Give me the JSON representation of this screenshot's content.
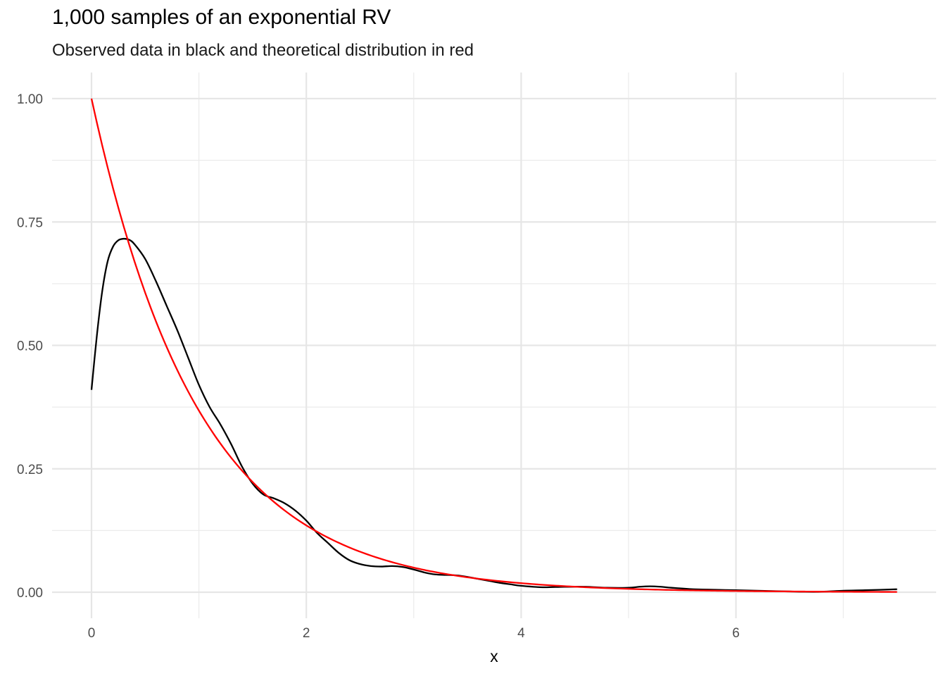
{
  "chart_data": {
    "type": "line",
    "title": "1,000 samples of an exponential RV",
    "subtitle": "Observed data in black and theoretical distribution in red",
    "xlabel": "x",
    "ylabel": "",
    "xlim": [
      0,
      7.5
    ],
    "ylim": [
      0,
      1.0
    ],
    "x_ticks": [
      0,
      2,
      4,
      6
    ],
    "x_tick_labels": [
      "0",
      "2",
      "4",
      "6"
    ],
    "y_ticks": [
      0,
      0.25,
      0.5,
      0.75,
      1.0
    ],
    "y_tick_labels": [
      "0.00",
      "0.25",
      "0.50",
      "0.75",
      "1.00"
    ],
    "grid": true,
    "legend": "none",
    "series": [
      {
        "color": "#000000",
        "points": [
          [
            0.0,
            0.41
          ],
          [
            0.05,
            0.52
          ],
          [
            0.1,
            0.61
          ],
          [
            0.15,
            0.67
          ],
          [
            0.2,
            0.7
          ],
          [
            0.25,
            0.713
          ],
          [
            0.3,
            0.716
          ],
          [
            0.35,
            0.714
          ],
          [
            0.4,
            0.705
          ],
          [
            0.5,
            0.675
          ],
          [
            0.6,
            0.63
          ],
          [
            0.7,
            0.58
          ],
          [
            0.8,
            0.53
          ],
          [
            0.9,
            0.475
          ],
          [
            1.0,
            0.42
          ],
          [
            1.1,
            0.375
          ],
          [
            1.2,
            0.34
          ],
          [
            1.3,
            0.3
          ],
          [
            1.4,
            0.255
          ],
          [
            1.5,
            0.22
          ],
          [
            1.6,
            0.198
          ],
          [
            1.7,
            0.19
          ],
          [
            1.8,
            0.18
          ],
          [
            1.9,
            0.165
          ],
          [
            2.0,
            0.145
          ],
          [
            2.1,
            0.12
          ],
          [
            2.2,
            0.1
          ],
          [
            2.3,
            0.08
          ],
          [
            2.4,
            0.065
          ],
          [
            2.5,
            0.057
          ],
          [
            2.6,
            0.053
          ],
          [
            2.7,
            0.052
          ],
          [
            2.8,
            0.053
          ],
          [
            2.9,
            0.051
          ],
          [
            3.0,
            0.046
          ],
          [
            3.1,
            0.04
          ],
          [
            3.2,
            0.036
          ],
          [
            3.3,
            0.035
          ],
          [
            3.4,
            0.034
          ],
          [
            3.5,
            0.031
          ],
          [
            3.6,
            0.027
          ],
          [
            3.7,
            0.023
          ],
          [
            3.8,
            0.019
          ],
          [
            3.9,
            0.016
          ],
          [
            4.0,
            0.013
          ],
          [
            4.2,
            0.01
          ],
          [
            4.4,
            0.011
          ],
          [
            4.6,
            0.011
          ],
          [
            4.8,
            0.009
          ],
          [
            5.0,
            0.009
          ],
          [
            5.1,
            0.011
          ],
          [
            5.2,
            0.012
          ],
          [
            5.3,
            0.011
          ],
          [
            5.4,
            0.009
          ],
          [
            5.6,
            0.006
          ],
          [
            5.8,
            0.005
          ],
          [
            6.0,
            0.004
          ],
          [
            6.2,
            0.003
          ],
          [
            6.4,
            0.002
          ],
          [
            6.6,
            0.001
          ],
          [
            6.8,
            0.001
          ],
          [
            7.0,
            0.003
          ],
          [
            7.2,
            0.004
          ],
          [
            7.5,
            0.006
          ]
        ]
      },
      {
        "color": "#ff0000",
        "function": "exp(-x)",
        "x_range": [
          0,
          7.5
        ]
      }
    ]
  }
}
